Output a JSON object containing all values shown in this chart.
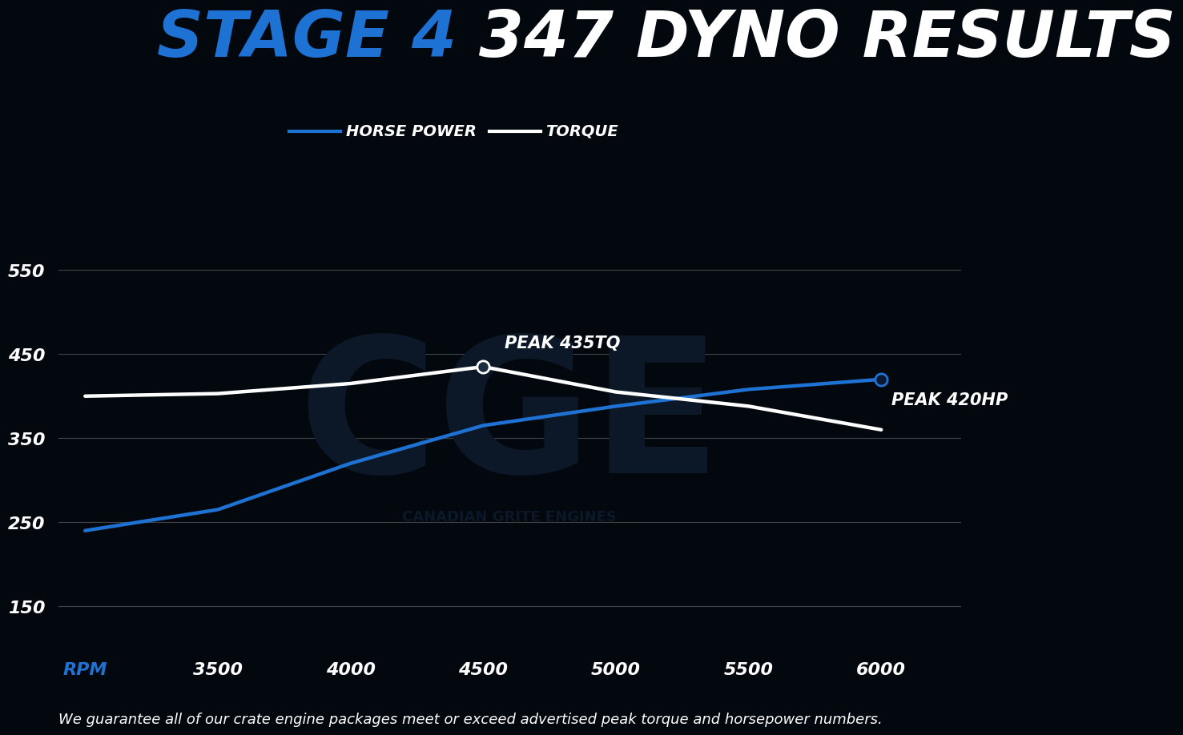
{
  "title_blue": "STAGE 4 ",
  "title_white": "347 DYNO RESULTS",
  "background_color": "#03080f",
  "plot_bg_color": "#03080f",
  "grid_color": "#4a4a4a",
  "rpm_values": [
    3000,
    3500,
    4000,
    4500,
    5000,
    5500,
    6000
  ],
  "hp_values": [
    240,
    265,
    320,
    365,
    388,
    408,
    420
  ],
  "tq_values": [
    400,
    403,
    415,
    435,
    405,
    388,
    360
  ],
  "hp_color": "#1e72d4",
  "tq_color": "#ffffff",
  "hp_peak_x": 6000,
  "hp_peak_y": 420,
  "tq_peak_x": 4500,
  "tq_peak_y": 435,
  "peak_hp_label": "PEAK 420HP",
  "peak_tq_label": "PEAK 435TQ",
  "rpm_label": "RPM",
  "legend_hp": "HORSE POWER",
  "legend_tq": "TORQUE",
  "xticks": [
    3000,
    3500,
    4000,
    4500,
    5000,
    5500,
    6000
  ],
  "xtick_labels": [
    "RPM",
    "3500",
    "4000",
    "4500",
    "5000",
    "5500",
    "6000"
  ],
  "yticks": [
    150,
    250,
    350,
    450,
    550
  ],
  "ylim": [
    100,
    620
  ],
  "xlim": [
    2900,
    6300
  ],
  "footnote": "We guarantee all of our crate engine packages meet or exceed advertised peak torque and horsepower numbers.",
  "line_width": 3.2,
  "title_fontsize": 58,
  "tick_fontsize": 16,
  "legend_fontsize": 14,
  "footnote_fontsize": 13,
  "annot_fontsize": 15
}
